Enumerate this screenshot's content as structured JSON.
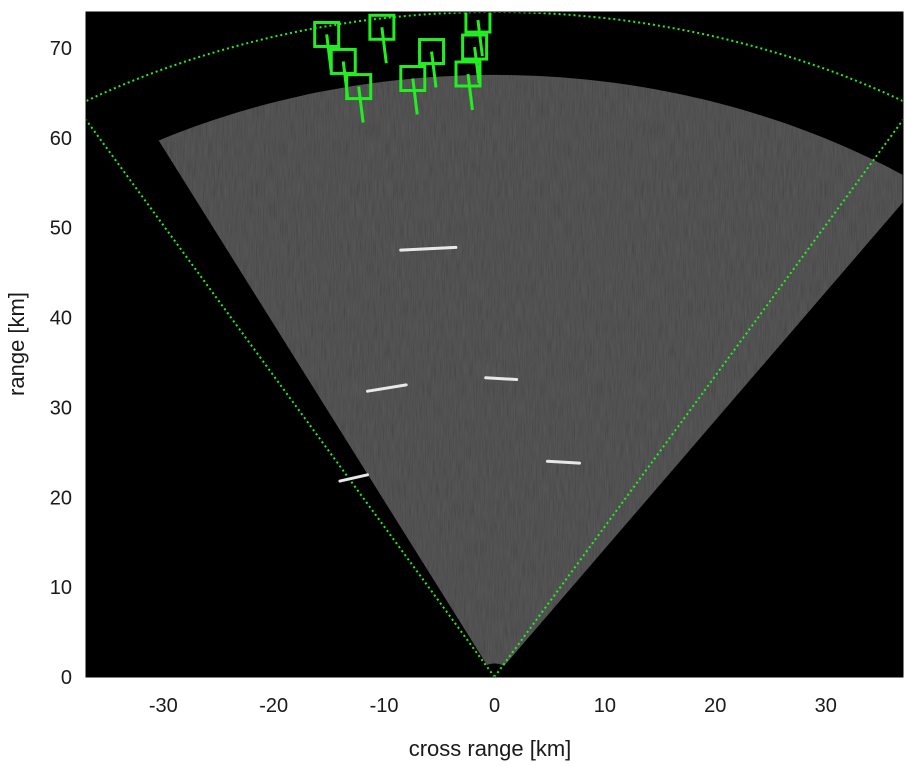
{
  "chart_data": {
    "type": "scatter",
    "title": "",
    "xlabel": "cross range [km]",
    "ylabel": "range [km]",
    "xlim": [
      -37,
      37
    ],
    "ylim": [
      0,
      74
    ],
    "xticks": [
      -30,
      -20,
      -10,
      0,
      10,
      20,
      30
    ],
    "yticks": [
      0,
      10,
      20,
      30,
      40,
      50,
      60,
      70
    ],
    "grid": false,
    "legend": "none",
    "colors": {
      "background": "#000000",
      "sector_fill": "#3a3a3a",
      "track_markers": "#22ee22",
      "returns": "#e8e8e8"
    },
    "radar_sector": {
      "origin": [
        0,
        0
      ],
      "max_range_km": 74,
      "half_angle_deg": 31
    },
    "echo_returns": [
      {
        "x": [
          -8.5,
          -3.5
        ],
        "y": [
          47.5,
          47.8
        ]
      },
      {
        "x": [
          -11.5,
          -8
        ],
        "y": [
          31.8,
          32.5
        ]
      },
      {
        "x": [
          -0.8,
          2
        ],
        "y": [
          33.3,
          33.1
        ]
      },
      {
        "x": [
          -14,
          -11.5
        ],
        "y": [
          21.8,
          22.5
        ]
      },
      {
        "x": [
          4.8,
          7.7
        ],
        "y": [
          24,
          23.8
        ]
      }
    ],
    "track_markers": [
      {
        "x": -15.2,
        "y": 71.5
      },
      {
        "x": -10.2,
        "y": 72.3
      },
      {
        "x": -13.7,
        "y": 68.5
      },
      {
        "x": -12.3,
        "y": 65.7
      },
      {
        "x": -5.7,
        "y": 69.6
      },
      {
        "x": -7.4,
        "y": 66.6
      },
      {
        "x": -1.5,
        "y": 73.1
      },
      {
        "x": -1.8,
        "y": 70.1
      },
      {
        "x": -2.4,
        "y": 67.1
      }
    ]
  }
}
